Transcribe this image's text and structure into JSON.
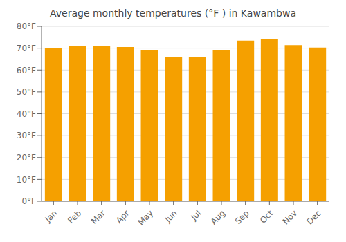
{
  "chart_data": {
    "type": "bar",
    "title": "Average monthly temperatures (°F ) in Kawambwa",
    "categories": [
      "Jan",
      "Feb",
      "Mar",
      "Apr",
      "May",
      "Jun",
      "Jul",
      "Aug",
      "Sep",
      "Oct",
      "Nov",
      "Dec"
    ],
    "values": [
      70.2,
      71.1,
      71.1,
      70.5,
      69.1,
      66.0,
      66.0,
      69.1,
      73.4,
      74.3,
      71.4,
      70.3
    ],
    "color": "#F5A000",
    "ylim": [
      0,
      80
    ],
    "yticks": [
      {
        "value": 0,
        "label": "0°F"
      },
      {
        "value": 10,
        "label": "10°F"
      },
      {
        "value": 20,
        "label": "20°F"
      },
      {
        "value": 30,
        "label": "30°F"
      },
      {
        "value": 40,
        "label": "40°F"
      },
      {
        "value": 50,
        "label": "50°F"
      },
      {
        "value": 60,
        "label": "60°F"
      },
      {
        "value": 70,
        "label": "70°F"
      },
      {
        "value": 80,
        "label": "80°F"
      }
    ],
    "grid": true
  }
}
